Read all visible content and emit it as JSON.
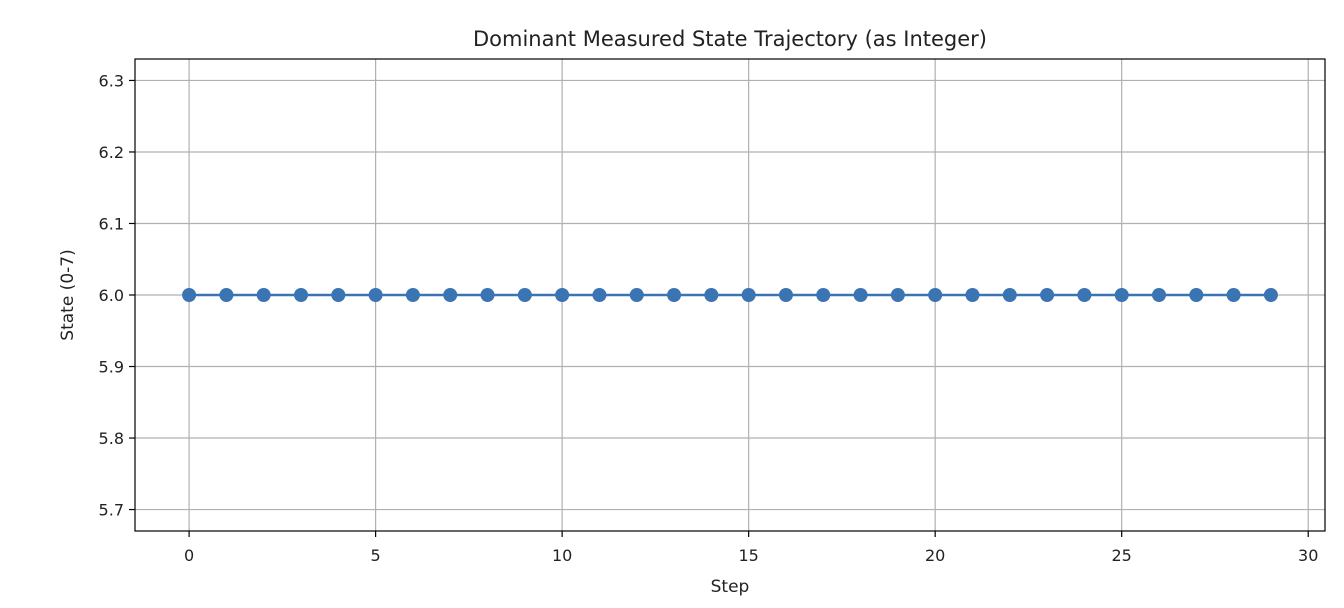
{
  "chart_data": {
    "type": "line",
    "title": "Dominant Measured State Trajectory (as Integer)",
    "xlabel": "Step",
    "ylabel": "State (0-7)",
    "xlim": [
      -1.45,
      30.45
    ],
    "ylim": [
      5.67,
      6.33
    ],
    "x_ticks": [
      0,
      5,
      10,
      15,
      20,
      25,
      30
    ],
    "y_ticks": [
      5.7,
      5.8,
      5.9,
      6.0,
      6.1,
      6.2,
      6.3
    ],
    "grid": true,
    "series": [
      {
        "x": [
          0,
          1,
          2,
          3,
          4,
          5,
          6,
          7,
          8,
          9,
          10,
          11,
          12,
          13,
          14,
          15,
          16,
          17,
          18,
          19,
          20,
          21,
          22,
          23,
          24,
          25,
          26,
          27,
          28,
          29
        ],
        "values": [
          6,
          6,
          6,
          6,
          6,
          6,
          6,
          6,
          6,
          6,
          6,
          6,
          6,
          6,
          6,
          6,
          6,
          6,
          6,
          6,
          6,
          6,
          6,
          6,
          6,
          6,
          6,
          6,
          6,
          6
        ],
        "color": "#3a74b2",
        "marker": "circle"
      }
    ]
  }
}
